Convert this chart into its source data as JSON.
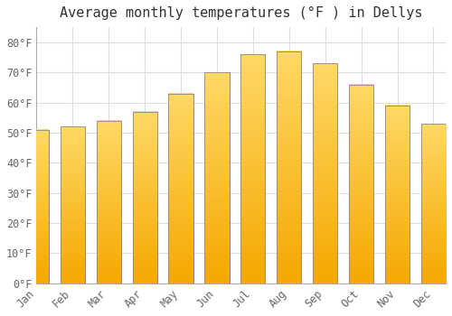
{
  "title": "Average monthly temperatures (°F ) in Dellys",
  "months": [
    "Jan",
    "Feb",
    "Mar",
    "Apr",
    "May",
    "Jun",
    "Jul",
    "Aug",
    "Sep",
    "Oct",
    "Nov",
    "Dec"
  ],
  "values": [
    51,
    52,
    54,
    57,
    63,
    70,
    76,
    77,
    73,
    66,
    59,
    53
  ],
  "bar_color_top": "#FFD966",
  "bar_color_bottom": "#F5A800",
  "bar_edge_color": "#888888",
  "background_color": "#FFFFFF",
  "grid_color": "#DDDDDD",
  "yticks": [
    0,
    10,
    20,
    30,
    40,
    50,
    60,
    70,
    80
  ],
  "ytick_labels": [
    "0°F",
    "10°F",
    "20°F",
    "30°F",
    "40°F",
    "50°F",
    "60°F",
    "70°F",
    "80°F"
  ],
  "ylim": [
    0,
    85
  ],
  "title_fontsize": 11,
  "tick_fontsize": 8.5,
  "title_color": "#333333",
  "tick_color": "#666666"
}
